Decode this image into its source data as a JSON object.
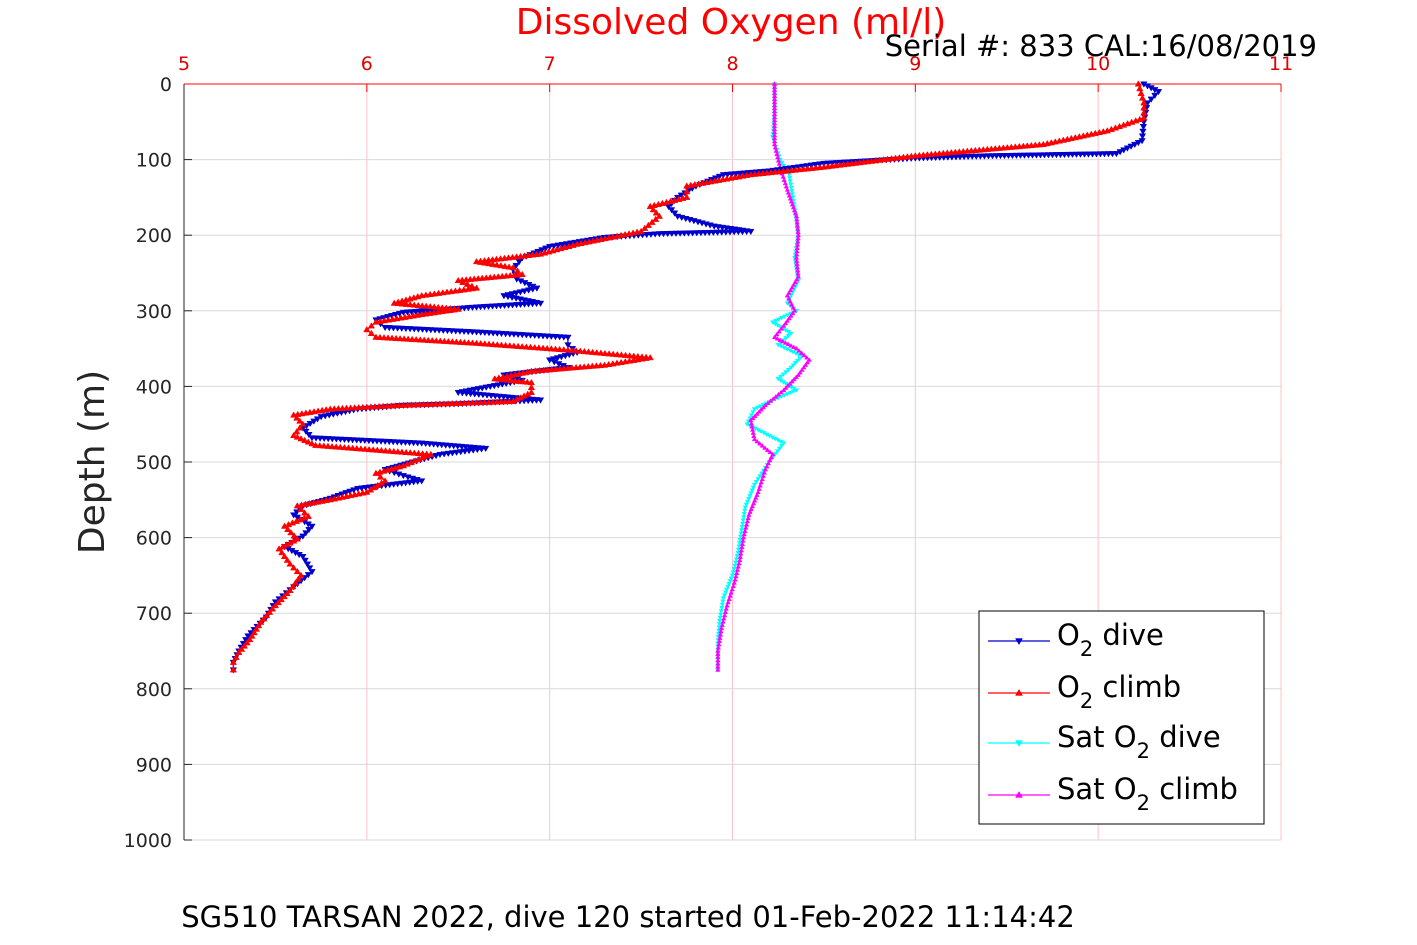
{
  "title": "Dissolved Oxygen (ml/l)",
  "serial_text": "Serial #: 833  CAL:16/08/2019",
  "footer_text": "SG510 TARSAN 2022, dive 120 started 01-Feb-2022 11:14:42",
  "chart_data": {
    "type": "line",
    "title": "Dissolved Oxygen (ml/l)",
    "xlabel": "",
    "ylabel": "Depth (m)",
    "xlim": [
      5,
      11
    ],
    "ylim": [
      0,
      1000
    ],
    "y_reversed": true,
    "x_axis_position": "top",
    "x_ticks": [
      5,
      6,
      7,
      8,
      9,
      10,
      11
    ],
    "y_ticks": [
      0,
      100,
      200,
      300,
      400,
      500,
      600,
      700,
      800,
      900,
      1000
    ],
    "grid": true,
    "legend_position": "bottom-right",
    "series": [
      {
        "name": "O2 dive",
        "color": "#0000cc",
        "marker": "triangle-down",
        "points": [
          [
            10.25,
            0
          ],
          [
            10.33,
            10
          ],
          [
            10.27,
            25
          ],
          [
            10.25,
            50
          ],
          [
            10.24,
            75
          ],
          [
            10.1,
            92
          ],
          [
            9.4,
            95
          ],
          [
            9.0,
            98
          ],
          [
            8.5,
            105
          ],
          [
            8.2,
            115
          ],
          [
            7.95,
            120
          ],
          [
            7.8,
            135
          ],
          [
            7.7,
            150
          ],
          [
            7.65,
            162
          ],
          [
            7.7,
            175
          ],
          [
            7.9,
            188
          ],
          [
            8.1,
            195
          ],
          [
            7.6,
            198
          ],
          [
            7.3,
            203
          ],
          [
            7.0,
            215
          ],
          [
            6.85,
            230
          ],
          [
            6.8,
            245
          ],
          [
            6.82,
            258
          ],
          [
            6.93,
            270
          ],
          [
            6.75,
            280
          ],
          [
            6.95,
            290
          ],
          [
            6.6,
            295
          ],
          [
            6.2,
            302
          ],
          [
            6.05,
            312
          ],
          [
            6.1,
            322
          ],
          [
            6.6,
            328
          ],
          [
            7.1,
            335
          ],
          [
            7.1,
            345
          ],
          [
            7.15,
            355
          ],
          [
            7.0,
            365
          ],
          [
            7.1,
            375
          ],
          [
            6.75,
            385
          ],
          [
            6.85,
            392
          ],
          [
            6.5,
            408
          ],
          [
            6.95,
            418
          ],
          [
            6.5,
            423
          ],
          [
            6.2,
            425
          ],
          [
            5.95,
            430
          ],
          [
            5.75,
            440
          ],
          [
            5.65,
            455
          ],
          [
            5.7,
            468
          ],
          [
            6.3,
            475
          ],
          [
            6.65,
            482
          ],
          [
            6.4,
            490
          ],
          [
            6.25,
            500
          ],
          [
            6.1,
            510
          ],
          [
            6.2,
            518
          ],
          [
            6.3,
            525
          ],
          [
            5.95,
            535
          ],
          [
            5.8,
            548
          ],
          [
            5.65,
            558
          ],
          [
            5.6,
            570
          ],
          [
            5.7,
            585
          ],
          [
            5.65,
            598
          ],
          [
            5.55,
            612
          ],
          [
            5.65,
            625
          ],
          [
            5.7,
            645
          ],
          [
            5.6,
            665
          ],
          [
            5.5,
            685
          ],
          [
            5.45,
            705
          ],
          [
            5.35,
            730
          ],
          [
            5.3,
            750
          ],
          [
            5.27,
            765
          ],
          [
            5.27,
            775
          ]
        ]
      },
      {
        "name": "O2 climb",
        "color": "#ff0000",
        "marker": "triangle-up",
        "points": [
          [
            5.27,
            775
          ],
          [
            5.27,
            765
          ],
          [
            5.3,
            752
          ],
          [
            5.36,
            735
          ],
          [
            5.42,
            712
          ],
          [
            5.5,
            690
          ],
          [
            5.58,
            670
          ],
          [
            5.64,
            650
          ],
          [
            5.58,
            635
          ],
          [
            5.52,
            615
          ],
          [
            5.62,
            602
          ],
          [
            5.55,
            585
          ],
          [
            5.68,
            572
          ],
          [
            5.62,
            558
          ],
          [
            5.8,
            550
          ],
          [
            6.0,
            540
          ],
          [
            6.1,
            525
          ],
          [
            6.05,
            515
          ],
          [
            6.2,
            505
          ],
          [
            6.35,
            490
          ],
          [
            5.72,
            478
          ],
          [
            5.6,
            465
          ],
          [
            5.65,
            450
          ],
          [
            5.6,
            438
          ],
          [
            5.8,
            430
          ],
          [
            6.2,
            425
          ],
          [
            6.8,
            420
          ],
          [
            6.9,
            408
          ],
          [
            6.9,
            395
          ],
          [
            6.7,
            390
          ],
          [
            6.9,
            380
          ],
          [
            7.3,
            372
          ],
          [
            7.55,
            362
          ],
          [
            7.1,
            352
          ],
          [
            6.6,
            343
          ],
          [
            6.05,
            335
          ],
          [
            6.0,
            325
          ],
          [
            6.05,
            315
          ],
          [
            6.3,
            305
          ],
          [
            6.5,
            298
          ],
          [
            6.15,
            290
          ],
          [
            6.3,
            280
          ],
          [
            6.6,
            270
          ],
          [
            6.5,
            260
          ],
          [
            6.85,
            252
          ],
          [
            6.8,
            243
          ],
          [
            6.6,
            235
          ],
          [
            6.95,
            225
          ],
          [
            7.15,
            212
          ],
          [
            7.5,
            195
          ],
          [
            7.6,
            175
          ],
          [
            7.55,
            162
          ],
          [
            7.75,
            150
          ],
          [
            7.75,
            135
          ],
          [
            8.1,
            120
          ],
          [
            8.5,
            110
          ],
          [
            9.0,
            95
          ],
          [
            9.7,
            80
          ],
          [
            10.05,
            62
          ],
          [
            10.25,
            45
          ],
          [
            10.25,
            25
          ],
          [
            10.22,
            0
          ]
        ]
      },
      {
        "name": "Sat O2 dive",
        "color": "#00ffff",
        "marker": "triangle-down",
        "points": [
          [
            8.23,
            0
          ],
          [
            8.23,
            40
          ],
          [
            8.22,
            70
          ],
          [
            8.26,
            100
          ],
          [
            8.31,
            120
          ],
          [
            8.33,
            150
          ],
          [
            8.35,
            180
          ],
          [
            8.36,
            200
          ],
          [
            8.34,
            230
          ],
          [
            8.36,
            260
          ],
          [
            8.3,
            290
          ],
          [
            8.35,
            300
          ],
          [
            8.22,
            315
          ],
          [
            8.32,
            330
          ],
          [
            8.25,
            345
          ],
          [
            8.38,
            360
          ],
          [
            8.32,
            375
          ],
          [
            8.25,
            390
          ],
          [
            8.35,
            405
          ],
          [
            8.25,
            415
          ],
          [
            8.12,
            430
          ],
          [
            8.08,
            450
          ],
          [
            8.28,
            475
          ],
          [
            8.2,
            500
          ],
          [
            8.12,
            530
          ],
          [
            8.07,
            560
          ],
          [
            8.05,
            590
          ],
          [
            8.03,
            620
          ],
          [
            8.0,
            650
          ],
          [
            7.95,
            680
          ],
          [
            7.93,
            710
          ],
          [
            7.92,
            740
          ],
          [
            7.92,
            760
          ],
          [
            7.92,
            775
          ]
        ]
      },
      {
        "name": "Sat O2 climb",
        "color": "#ff00ff",
        "marker": "triangle-up",
        "points": [
          [
            7.92,
            775
          ],
          [
            7.92,
            750
          ],
          [
            7.94,
            720
          ],
          [
            7.97,
            690
          ],
          [
            8.01,
            660
          ],
          [
            8.04,
            630
          ],
          [
            8.06,
            600
          ],
          [
            8.09,
            570
          ],
          [
            8.14,
            540
          ],
          [
            8.18,
            510
          ],
          [
            8.22,
            490
          ],
          [
            8.12,
            470
          ],
          [
            8.1,
            445
          ],
          [
            8.18,
            425
          ],
          [
            8.28,
            405
          ],
          [
            8.36,
            385
          ],
          [
            8.42,
            365
          ],
          [
            8.35,
            350
          ],
          [
            8.23,
            335
          ],
          [
            8.28,
            320
          ],
          [
            8.34,
            300
          ],
          [
            8.3,
            280
          ],
          [
            8.36,
            255
          ],
          [
            8.35,
            230
          ],
          [
            8.36,
            200
          ],
          [
            8.35,
            175
          ],
          [
            8.3,
            140
          ],
          [
            8.26,
            110
          ],
          [
            8.23,
            80
          ],
          [
            8.23,
            40
          ],
          [
            8.23,
            0
          ]
        ]
      }
    ]
  }
}
